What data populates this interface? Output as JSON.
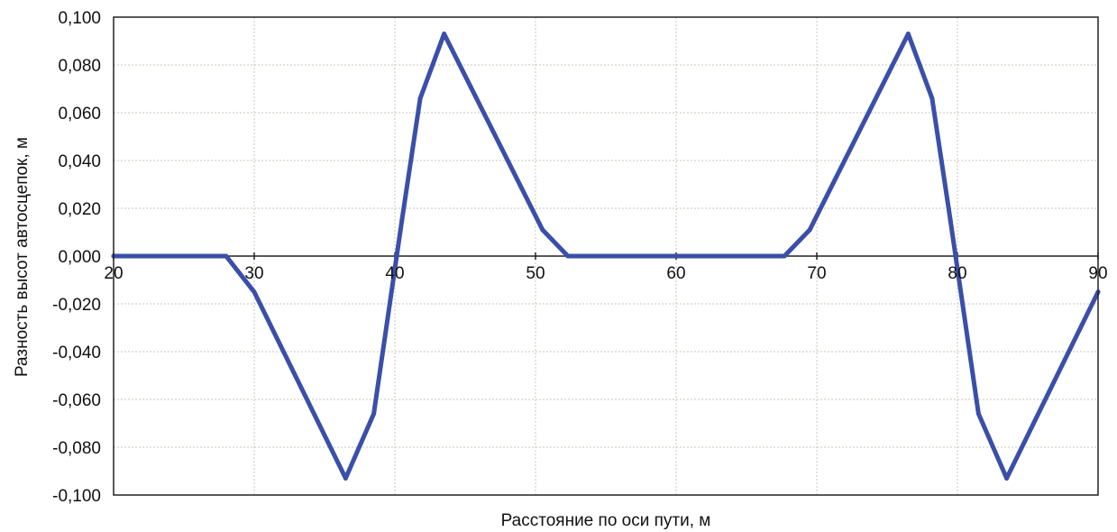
{
  "chart_data": {
    "type": "line",
    "title": "",
    "xlabel": "Расстояние по оси пути, м",
    "ylabel": "Разность высот автосцепок, м",
    "xlim": [
      20,
      90
    ],
    "ylim": [
      -0.1,
      0.1
    ],
    "x_ticks": [
      20,
      30,
      40,
      50,
      60,
      70,
      80,
      90
    ],
    "x_tick_labels": [
      "20",
      "30",
      "40",
      "50",
      "60",
      "70",
      "80",
      "90"
    ],
    "y_ticks": [
      0.1,
      0.08,
      0.06,
      0.04,
      0.02,
      0,
      -0.02,
      -0.04,
      -0.06,
      -0.08,
      -0.1
    ],
    "y_tick_labels": [
      "0,100",
      "0,080",
      "0,060",
      "0,040",
      "0,020",
      "0,000",
      "-0,020",
      "-0,040",
      "-0,060",
      "-0,080",
      "-0,100"
    ],
    "grid": true,
    "legend": "none",
    "series": [
      {
        "color": "#3a4fa8",
        "x": [
          20,
          28,
          30,
          36.5,
          38.5,
          40.5,
          41.8,
          43.5,
          50.5,
          52.3,
          67.7,
          69.5,
          76.5,
          78.2,
          79.5,
          81.5,
          83.5,
          90
        ],
        "y": [
          0,
          0,
          -0.015,
          -0.093,
          -0.066,
          0.015,
          0.066,
          0.093,
          0.011,
          0,
          0,
          0.011,
          0.093,
          0.066,
          0.015,
          -0.066,
          -0.093,
          -0.015
        ]
      }
    ]
  }
}
